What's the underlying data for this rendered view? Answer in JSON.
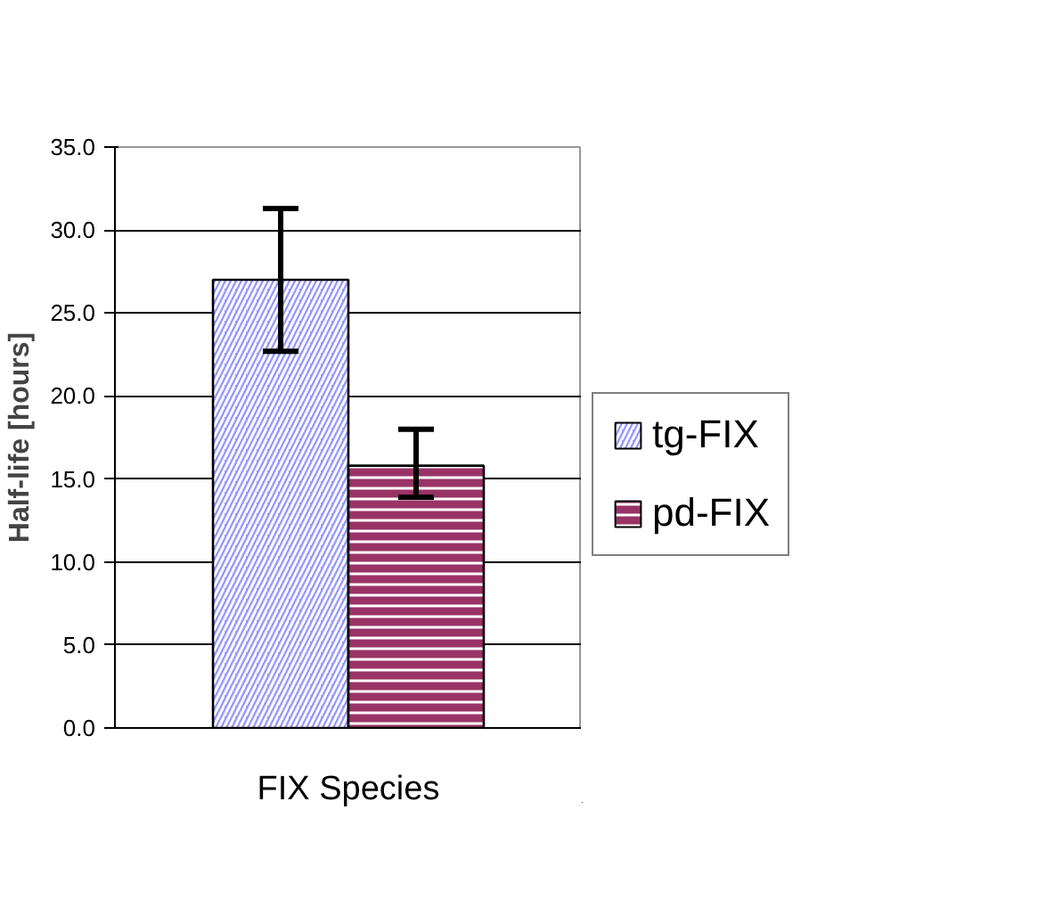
{
  "chart_data": {
    "type": "bar",
    "ylabel": "Half-life [hours]",
    "categories": [
      "FIX Species"
    ],
    "series": [
      {
        "name": "tg-FIX",
        "color": "#9999ff",
        "values": [
          27.0
        ],
        "errors": [
          [
            22.7,
            31.3
          ]
        ]
      },
      {
        "name": "pd-FIX",
        "color": "#993366",
        "values": [
          15.8
        ],
        "errors": [
          [
            13.9,
            18.0
          ]
        ]
      }
    ],
    "ylim": [
      0,
      35
    ],
    "yticks": [
      {
        "value": 0,
        "label": "0.0"
      },
      {
        "value": 5,
        "label": "5.0"
      },
      {
        "value": 10,
        "label": "10.0"
      },
      {
        "value": 15,
        "label": "15.0"
      },
      {
        "value": 20,
        "label": "20.0"
      },
      {
        "value": 25,
        "label": "25.0"
      },
      {
        "value": 30,
        "label": "30.0"
      },
      {
        "value": 35,
        "label": "35.0"
      }
    ],
    "grid": "y",
    "legend": "right"
  }
}
